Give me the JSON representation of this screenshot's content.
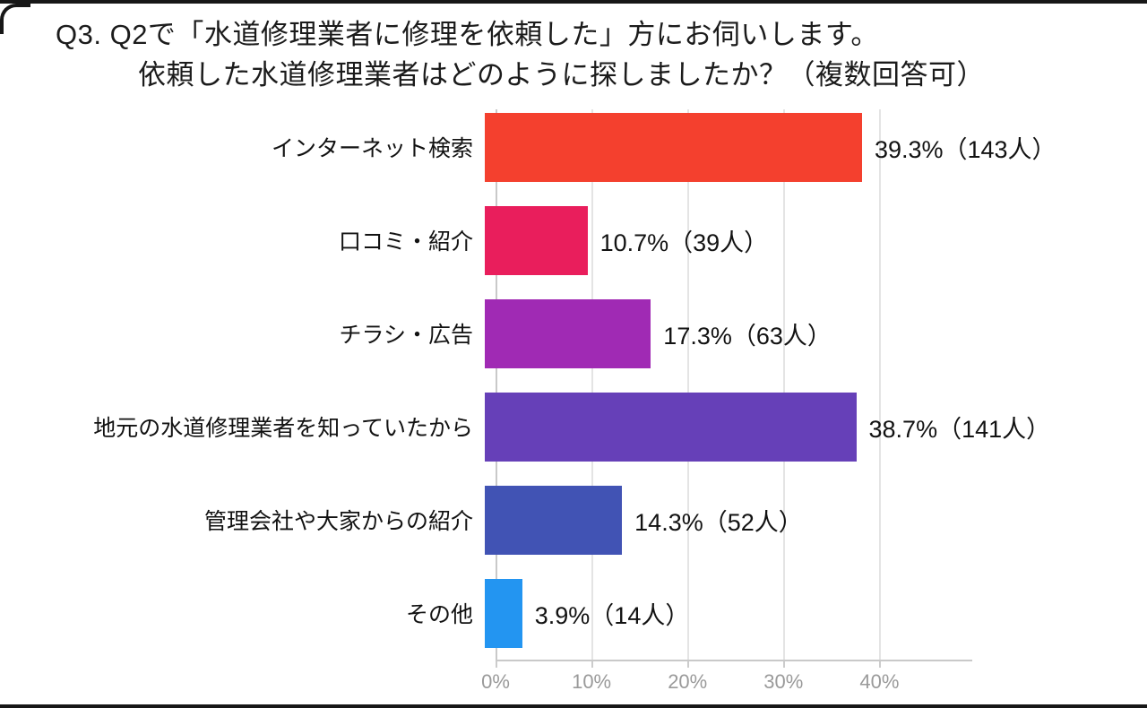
{
  "title": {
    "line1": "Q3. Q2で「水道修理業者に修理を依頼した」方にお伺いします。",
    "line2": "依頼した水道修理業者はどのように探しましたか？（複数回答可）"
  },
  "chart_data": {
    "type": "bar",
    "orientation": "horizontal",
    "title": "依頼した水道修理業者はどのように探しましたか？（複数回答可）",
    "categories": [
      "インターネット検索",
      "口コミ・紹介",
      "チラシ・広告",
      "地元の水道修理業者を知っていたから",
      "管理会社や大家からの紹介",
      "その他"
    ],
    "values": [
      39.3,
      10.7,
      17.3,
      38.7,
      14.3,
      3.9
    ],
    "counts": [
      143,
      39,
      63,
      141,
      52,
      14
    ],
    "value_labels": [
      "39.3%（143人）",
      "10.7%（39人）",
      "17.3%（63人）",
      "38.7%（141人）",
      "14.3%（52人）",
      "3.9%（14人）"
    ],
    "bar_colors": [
      "#f4402e",
      "#e91e5c",
      "#a02ab4",
      "#6640b8",
      "#4153b4",
      "#2395f1"
    ],
    "xlabel": "",
    "ylabel": "",
    "xlim": [
      0,
      45
    ],
    "x_ticks": [
      "0%",
      "10%",
      "20%",
      "30%",
      "40%"
    ],
    "x_tick_values": [
      0,
      10,
      20,
      30,
      40
    ],
    "grid": true,
    "legend": false,
    "grid_color": "#e4e4e4",
    "axis_color": "#c9c9c9",
    "tick_label_color": "#9a9a9a",
    "text_color": "#121212"
  }
}
